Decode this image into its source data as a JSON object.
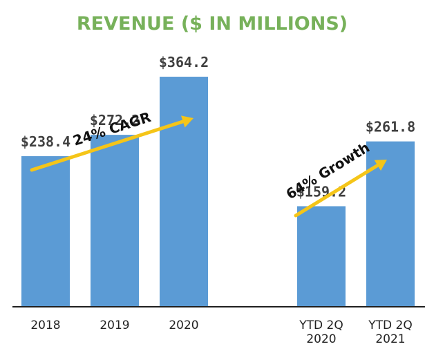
{
  "chart_data": {
    "type": "bar",
    "title": "REVENUE ($ IN MILLIONS)",
    "categories": [
      [
        "2018"
      ],
      [
        "2019"
      ],
      [
        "2020"
      ],
      [
        "YTD 2Q",
        "2020"
      ],
      [
        "YTD 2Q",
        "2021"
      ]
    ],
    "values": [
      238.4,
      272.2,
      364.2,
      159.2,
      261.8
    ],
    "value_labels": [
      "$238.4",
      "$272.2",
      "$364.2",
      "$159.2",
      "$261.8"
    ],
    "ylim": [
      0,
      420
    ],
    "grid": false,
    "annotations": [
      {
        "text": "24% CAGR",
        "from_category": 0,
        "to_category": 2
      },
      {
        "text": "64% Growth",
        "from_category": 3,
        "to_category": 4
      }
    ]
  },
  "colors": {
    "bar": "#5b9bd5",
    "title": "#77b15a",
    "arrow": "#f5c518",
    "axis": "#1f1f1f",
    "value_text": "#404040"
  }
}
